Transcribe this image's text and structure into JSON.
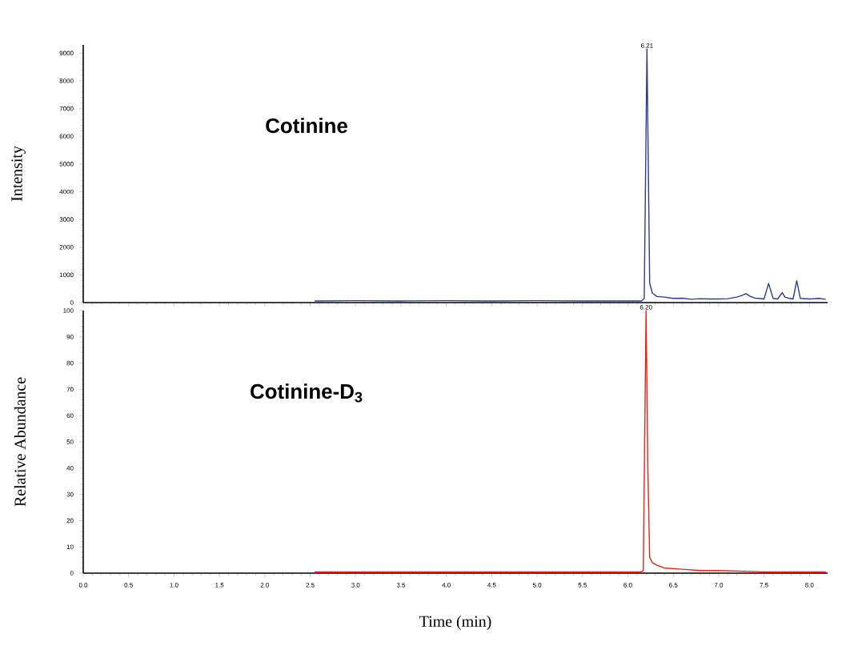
{
  "chart_data": [
    {
      "type": "line",
      "title": "Cotinine",
      "ylabel": "Intensity",
      "tick_labels": "y",
      "xlim": [
        0,
        8.2
      ],
      "xticks": [
        {
          "value": 0,
          "label": null
        },
        {
          "value": 0.5,
          "label": null
        },
        {
          "value": 1,
          "label": null
        },
        {
          "value": 1.5,
          "label": null
        },
        {
          "value": 2,
          "label": null
        },
        {
          "value": 2.5,
          "label": null
        },
        {
          "value": 3,
          "label": null
        },
        {
          "value": 3.5,
          "label": null
        },
        {
          "value": 4,
          "label": null
        },
        {
          "value": 4.5,
          "label": null
        },
        {
          "value": 5,
          "label": null
        },
        {
          "value": 5.5,
          "label": null
        },
        {
          "value": 6,
          "label": null
        },
        {
          "value": 6.5,
          "label": null
        },
        {
          "value": 7,
          "label": null
        },
        {
          "value": 7.5,
          "label": null
        },
        {
          "value": 8,
          "label": null
        }
      ],
      "ylim": [
        0,
        9300
      ],
      "yticks": [
        0,
        1000,
        2000,
        3000,
        4000,
        5000,
        6000,
        7000,
        8000,
        9000
      ],
      "annotations": [
        {
          "text": "6.21",
          "x": 6.21,
          "y": 9150
        }
      ],
      "series": [
        {
          "color": "#2b3a9a",
          "x": [
            2.55,
            3.0,
            3.5,
            4.0,
            4.5,
            5.0,
            5.5,
            6.0,
            6.15,
            6.18,
            6.21,
            6.24,
            6.27,
            6.32,
            6.4,
            6.5,
            6.6,
            6.7,
            6.8,
            6.9,
            7.0,
            7.1,
            7.2,
            7.25,
            7.3,
            7.35,
            7.4,
            7.45,
            7.5,
            7.55,
            7.6,
            7.65,
            7.7,
            7.73,
            7.78,
            7.82,
            7.86,
            7.9,
            8.0,
            8.1,
            8.18
          ],
          "values": [
            60,
            70,
            60,
            70,
            60,
            70,
            60,
            60,
            60,
            150,
            9150,
            700,
            340,
            220,
            200,
            150,
            160,
            120,
            140,
            130,
            130,
            140,
            200,
            250,
            320,
            220,
            160,
            150,
            130,
            690,
            150,
            130,
            360,
            200,
            150,
            130,
            790,
            150,
            130,
            150,
            120
          ]
        }
      ]
    },
    {
      "type": "line",
      "title": "Cotinine-D$_{3}$",
      "xlabel": "Time (min)",
      "ylabel": "Relative Abundance",
      "xlim": [
        0,
        8.2
      ],
      "xticks": [
        {
          "value": 0,
          "label": "0.0"
        },
        {
          "value": 0.5,
          "label": "0.5"
        },
        {
          "value": 1,
          "label": "1.0"
        },
        {
          "value": 1.5,
          "label": "1.5"
        },
        {
          "value": 2,
          "label": "2.0"
        },
        {
          "value": 2.5,
          "label": "2.5"
        },
        {
          "value": 3,
          "label": "3.0"
        },
        {
          "value": 3.5,
          "label": "3.5"
        },
        {
          "value": 4,
          "label": "4.0"
        },
        {
          "value": 4.5,
          "label": "4.5"
        },
        {
          "value": 5,
          "label": "5.0"
        },
        {
          "value": 5.5,
          "label": "5.5"
        },
        {
          "value": 6,
          "label": "6.0"
        },
        {
          "value": 6.5,
          "label": "6.5"
        },
        {
          "value": 7,
          "label": "7.0"
        },
        {
          "value": 7.5,
          "label": "7.5"
        },
        {
          "value": 8,
          "label": "8.0"
        }
      ],
      "ylim": [
        0,
        100
      ],
      "yticks": [
        0,
        10,
        20,
        30,
        40,
        50,
        60,
        70,
        80,
        90,
        100
      ],
      "annotations": [
        {
          "text": "6.20",
          "x": 6.2,
          "y": 100
        }
      ],
      "series": [
        {
          "color": "#e8211b",
          "x": [
            2.55,
            3.0,
            4.0,
            5.0,
            6.0,
            6.15,
            6.17,
            6.2,
            6.22,
            6.24,
            6.27,
            6.32,
            6.4,
            6.6,
            6.8,
            7.0,
            7.5,
            8.0,
            8.18
          ],
          "values": [
            0.5,
            0.5,
            0.5,
            0.5,
            0.5,
            0.5,
            1,
            100,
            40,
            6,
            4,
            3,
            2,
            1.5,
            1,
            1,
            0.5,
            0.5,
            0.5
          ]
        }
      ]
    }
  ]
}
